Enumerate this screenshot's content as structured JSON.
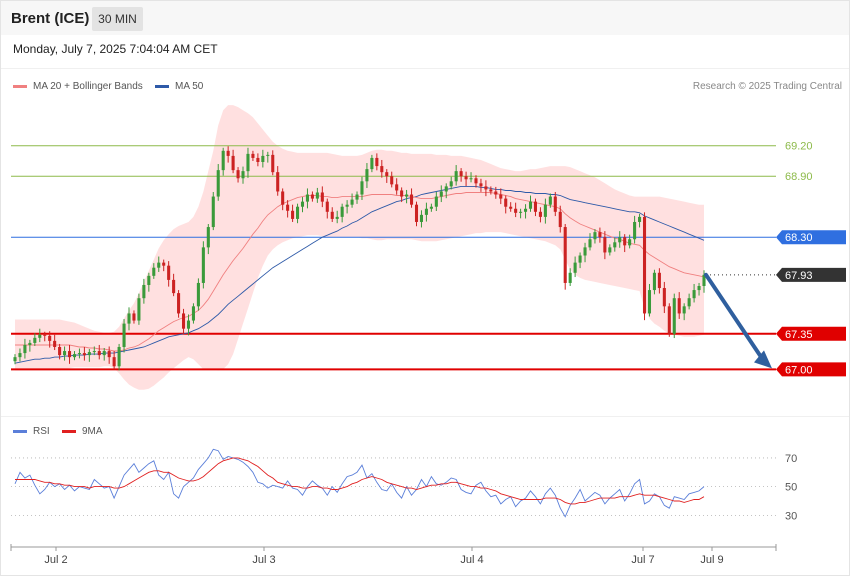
{
  "header": {
    "instrument": "Brent (ICE)",
    "timeframe": "30 MIN"
  },
  "datetime": "Monday, July 7, 2025 7:04:04 AM CET",
  "credit": "Research © 2025 Trading Central",
  "colors": {
    "ma20": "#f08080",
    "ma50": "#2e5aa8",
    "bb_fill": "#ffd6d6",
    "up": "#3a9a3a",
    "down": "#cc2222",
    "rsi": "#5b7fd9",
    "rsi_ma": "#e02020",
    "resistance": "#8dba4a",
    "pivot": "#2f6fe0",
    "support": "#e00000",
    "last": "#333333",
    "arrow": "#2f5f9e"
  },
  "chart_data": [
    {
      "type": "candlestick",
      "title": "Brent (ICE) 30 MIN",
      "legend": [
        "MA 20 + Bollinger Bands",
        "MA 50"
      ],
      "x_ticks": [
        "Jul 2",
        "Jul 3",
        "Jul 4",
        "Jul 7",
        "Jul 9"
      ],
      "ylim": [
        66.6,
        69.65
      ],
      "grid": false,
      "levels": [
        {
          "value": 69.2,
          "label": "69.20",
          "kind": "resistance"
        },
        {
          "value": 68.9,
          "label": "68.90",
          "kind": "resistance"
        },
        {
          "value": 68.3,
          "label": "68.30",
          "kind": "pivot"
        },
        {
          "value": 67.93,
          "label": "67.93",
          "kind": "last"
        },
        {
          "value": 67.35,
          "label": "67.35",
          "kind": "support"
        },
        {
          "value": 67.0,
          "label": "67.00",
          "kind": "support"
        }
      ],
      "close": [
        67.12,
        67.16,
        67.24,
        67.26,
        67.31,
        67.34,
        67.33,
        67.28,
        67.22,
        67.14,
        67.18,
        67.12,
        67.15,
        67.16,
        67.14,
        67.17,
        67.18,
        67.14,
        67.18,
        67.12,
        67.03,
        67.22,
        67.45,
        67.55,
        67.48,
        67.7,
        67.83,
        67.92,
        68.0,
        68.05,
        68.02,
        67.88,
        67.75,
        67.55,
        67.4,
        67.48,
        67.62,
        67.85,
        68.2,
        68.4,
        68.7,
        68.96,
        69.15,
        69.1,
        68.96,
        68.88,
        68.95,
        69.12,
        69.08,
        69.04,
        69.1,
        69.11,
        68.94,
        68.75,
        68.62,
        68.56,
        68.48,
        68.6,
        68.65,
        68.72,
        68.68,
        68.74,
        68.65,
        68.55,
        68.48,
        68.5,
        68.6,
        68.62,
        68.67,
        68.72,
        68.85,
        68.97,
        69.08,
        69.0,
        68.94,
        68.9,
        68.82,
        68.76,
        68.7,
        68.72,
        68.62,
        68.45,
        68.52,
        68.58,
        68.6,
        68.7,
        68.75,
        68.8,
        68.85,
        68.95,
        68.9,
        68.87,
        68.88,
        68.83,
        68.8,
        68.77,
        68.75,
        68.72,
        68.68,
        68.6,
        68.58,
        68.54,
        68.55,
        68.58,
        68.65,
        68.55,
        68.5,
        68.62,
        68.7,
        68.55,
        68.4,
        67.85,
        67.95,
        68.05,
        68.12,
        68.2,
        68.28,
        68.35,
        68.3,
        68.15,
        68.2,
        68.25,
        68.3,
        68.22,
        68.28,
        68.45,
        68.5,
        67.55,
        67.78,
        67.95,
        67.8,
        67.62,
        67.35,
        67.7,
        67.55,
        67.62,
        67.7,
        67.78,
        67.82,
        67.93
      ],
      "ma20": [
        67.24,
        67.24,
        67.24,
        67.24,
        67.24,
        67.24,
        67.24,
        67.24,
        67.24,
        67.24,
        67.24,
        67.24,
        67.23,
        67.22,
        67.22,
        67.21,
        67.21,
        67.2,
        67.2,
        67.19,
        67.18,
        67.18,
        67.19,
        67.21,
        67.22,
        67.24,
        67.27,
        67.3,
        67.34,
        67.38,
        67.41,
        67.44,
        67.47,
        67.49,
        67.51,
        67.52,
        67.55,
        67.58,
        67.63,
        67.69,
        67.77,
        67.85,
        67.93,
        68.0,
        68.07,
        68.13,
        68.19,
        68.26,
        68.33,
        68.39,
        68.46,
        68.52,
        68.56,
        68.6,
        68.63,
        68.65,
        68.67,
        68.69,
        68.7,
        68.71,
        68.71,
        68.71,
        68.7,
        68.7,
        68.69,
        68.69,
        68.7,
        68.7,
        68.7,
        68.7,
        68.7,
        68.71,
        68.72,
        68.72,
        68.72,
        68.72,
        68.72,
        68.71,
        68.71,
        68.71,
        68.7,
        68.69,
        68.68,
        68.68,
        68.68,
        68.69,
        68.7,
        68.71,
        68.72,
        68.73,
        68.73,
        68.74,
        68.74,
        68.74,
        68.74,
        68.74,
        68.74,
        68.73,
        68.72,
        68.71,
        68.7,
        68.68,
        68.67,
        68.66,
        68.65,
        68.64,
        68.63,
        68.62,
        68.61,
        68.6,
        68.58,
        68.53,
        68.49,
        68.46,
        68.43,
        68.41,
        68.39,
        68.37,
        68.35,
        68.33,
        68.31,
        68.29,
        68.28,
        68.26,
        68.24,
        68.23,
        68.22,
        68.17,
        68.13,
        68.1,
        68.07,
        68.04,
        68.01,
        67.99,
        67.97,
        67.95,
        67.94,
        67.93,
        67.92,
        67.91
      ],
      "ma50": [
        67.06,
        67.07,
        67.08,
        67.09,
        67.1,
        67.1,
        67.11,
        67.11,
        67.12,
        67.12,
        67.13,
        67.13,
        67.14,
        67.14,
        67.14,
        67.15,
        67.15,
        67.15,
        67.16,
        67.16,
        67.16,
        67.17,
        67.18,
        67.19,
        67.2,
        67.21,
        67.22,
        67.24,
        67.26,
        67.28,
        67.3,
        67.32,
        67.33,
        67.34,
        67.35,
        67.36,
        67.38,
        67.4,
        67.43,
        67.46,
        67.5,
        67.54,
        67.59,
        67.64,
        67.68,
        67.72,
        67.76,
        67.8,
        67.84,
        67.88,
        67.92,
        67.96,
        68.0,
        68.03,
        68.06,
        68.09,
        68.12,
        68.15,
        68.18,
        68.21,
        68.24,
        68.27,
        68.3,
        68.32,
        68.34,
        68.36,
        68.39,
        68.41,
        68.44,
        68.46,
        68.49,
        68.52,
        68.55,
        68.57,
        68.59,
        68.61,
        68.63,
        68.65,
        68.66,
        68.68,
        68.69,
        68.7,
        68.72,
        68.73,
        68.74,
        68.75,
        68.76,
        68.77,
        68.78,
        68.79,
        68.8,
        68.8,
        68.8,
        68.8,
        68.79,
        68.79,
        68.78,
        68.77,
        68.77,
        68.76,
        68.76,
        68.75,
        68.75,
        68.74,
        68.74,
        68.73,
        68.73,
        68.73,
        68.72,
        68.72,
        68.71,
        68.69,
        68.67,
        68.66,
        68.65,
        68.64,
        68.63,
        68.62,
        68.61,
        68.6,
        68.59,
        68.58,
        68.57,
        68.56,
        68.55,
        68.55,
        68.54,
        68.51,
        68.49,
        68.47,
        68.45,
        68.43,
        68.41,
        68.39,
        68.37,
        68.35,
        68.33,
        68.31,
        68.29,
        68.27
      ],
      "bb_upper": [
        67.49,
        67.49,
        67.49,
        67.49,
        67.49,
        67.49,
        67.49,
        67.49,
        67.49,
        67.49,
        67.48,
        67.47,
        67.46,
        67.44,
        67.42,
        67.4,
        67.38,
        67.37,
        67.36,
        67.36,
        67.37,
        67.42,
        67.5,
        67.58,
        67.65,
        67.75,
        67.86,
        67.97,
        68.08,
        68.19,
        68.27,
        68.33,
        68.38,
        68.41,
        68.43,
        68.45,
        68.5,
        68.6,
        68.75,
        68.95,
        69.15,
        69.4,
        69.55,
        69.6,
        69.6,
        69.58,
        69.55,
        69.52,
        69.48,
        69.42,
        69.36,
        69.3,
        69.24,
        69.2,
        69.17,
        69.15,
        69.14,
        69.13,
        69.13,
        69.13,
        69.13,
        69.13,
        69.13,
        69.13,
        69.12,
        69.11,
        69.1,
        69.1,
        69.1,
        69.1,
        69.11,
        69.13,
        69.15,
        69.16,
        69.16,
        69.15,
        69.15,
        69.14,
        69.13,
        69.13,
        69.12,
        69.12,
        69.12,
        69.12,
        69.12,
        69.11,
        69.11,
        69.11,
        69.1,
        69.1,
        69.1,
        69.09,
        69.08,
        69.07,
        69.06,
        69.04,
        69.02,
        69.0,
        68.98,
        68.97,
        68.96,
        68.95,
        68.95,
        68.96,
        68.97,
        68.97,
        68.98,
        68.99,
        69.0,
        69.0,
        69.0,
        69.0,
        68.99,
        68.97,
        68.95,
        68.93,
        68.91,
        68.89,
        68.86,
        68.83,
        68.8,
        68.77,
        68.75,
        68.73,
        68.71,
        68.7,
        68.7,
        68.7,
        68.7,
        68.7,
        68.7,
        68.69,
        68.68,
        68.67,
        68.66,
        68.65,
        68.64,
        68.63,
        68.62,
        68.62
      ],
      "bb_lower": [
        66.99,
        66.99,
        66.99,
        66.99,
        66.99,
        66.99,
        66.99,
        66.99,
        66.99,
        66.99,
        67.0,
        67.01,
        67.02,
        67.02,
        67.02,
        67.02,
        67.02,
        67.02,
        67.03,
        67.03,
        67.01,
        66.96,
        66.9,
        66.85,
        66.82,
        66.8,
        66.8,
        66.81,
        66.84,
        66.88,
        66.92,
        66.97,
        67.01,
        67.05,
        67.09,
        67.12,
        67.1,
        67.05,
        67.0,
        67.0,
        67.0,
        66.99,
        67.0,
        67.05,
        67.15,
        67.3,
        67.45,
        67.6,
        67.75,
        67.9,
        68.02,
        68.12,
        68.18,
        68.22,
        68.25,
        68.27,
        68.29,
        68.3,
        68.31,
        68.32,
        68.32,
        68.32,
        68.31,
        68.3,
        68.3,
        68.3,
        68.3,
        68.3,
        68.3,
        68.3,
        68.29,
        68.29,
        68.28,
        68.27,
        68.27,
        68.28,
        68.28,
        68.28,
        68.28,
        68.28,
        68.28,
        68.27,
        68.26,
        68.26,
        68.26,
        68.26,
        68.27,
        68.28,
        68.29,
        68.3,
        68.31,
        68.32,
        68.33,
        68.34,
        68.34,
        68.35,
        68.35,
        68.35,
        68.35,
        68.34,
        68.33,
        68.32,
        68.31,
        68.3,
        68.29,
        68.28,
        68.27,
        68.26,
        68.24,
        68.22,
        68.18,
        68.08,
        67.98,
        67.93,
        67.9,
        67.88,
        67.87,
        67.86,
        67.85,
        67.84,
        67.83,
        67.82,
        67.81,
        67.8,
        67.79,
        67.78,
        67.77,
        67.6,
        67.5,
        67.45,
        67.42,
        67.38,
        67.35,
        67.34,
        67.33,
        67.32,
        67.32,
        67.32,
        67.33,
        67.34
      ]
    },
    {
      "type": "line",
      "legend": [
        "RSI",
        "9MA"
      ],
      "y_ticks": [
        70,
        50,
        30
      ],
      "ylim": [
        17,
        79
      ],
      "rsi": [
        52,
        60,
        56,
        58,
        51,
        45,
        48,
        53,
        50,
        52,
        48,
        51,
        47,
        50,
        49,
        48,
        55,
        52,
        49,
        50,
        42,
        50,
        58,
        62,
        66,
        60,
        63,
        66,
        68,
        58,
        55,
        60,
        45,
        42,
        50,
        53,
        56,
        62,
        66,
        70,
        76,
        75,
        69,
        71,
        70,
        69,
        67,
        64,
        60,
        53,
        52,
        49,
        51,
        50,
        49,
        54,
        49,
        48,
        44,
        50,
        54,
        51,
        49,
        44,
        50,
        46,
        52,
        57,
        58,
        60,
        65,
        56,
        59,
        53,
        48,
        47,
        52,
        46,
        42,
        50,
        44,
        48,
        55,
        50,
        57,
        52,
        51,
        53,
        56,
        55,
        48,
        46,
        45,
        51,
        53,
        47,
        43,
        44,
        38,
        41,
        43,
        36,
        40,
        42,
        47,
        43,
        38,
        45,
        49,
        44,
        35,
        29,
        37,
        42,
        48,
        40,
        43,
        46,
        44,
        38,
        42,
        45,
        48,
        40,
        45,
        52,
        55,
        38,
        40,
        45,
        43,
        37,
        35,
        43,
        42,
        41,
        45,
        46,
        47,
        50
      ],
      "rsi_ma": [
        55,
        55,
        55,
        55,
        55,
        54,
        53,
        53,
        52,
        52,
        51,
        51,
        50,
        50,
        50,
        49,
        50,
        50,
        50,
        50,
        49,
        49,
        50,
        52,
        54,
        56,
        58,
        60,
        61,
        61,
        60,
        60,
        58,
        56,
        55,
        54,
        54,
        55,
        57,
        60,
        63,
        66,
        68,
        69,
        70,
        70,
        69,
        68,
        66,
        64,
        61,
        58,
        56,
        53,
        52,
        51,
        50,
        50,
        49,
        49,
        50,
        50,
        49,
        49,
        48,
        48,
        49,
        50,
        52,
        53,
        55,
        56,
        57,
        56,
        55,
        53,
        52,
        51,
        50,
        49,
        49,
        48,
        49,
        50,
        51,
        51,
        52,
        52,
        53,
        53,
        52,
        51,
        50,
        50,
        49,
        49,
        48,
        47,
        45,
        44,
        43,
        42,
        41,
        41,
        41,
        41,
        41,
        42,
        42,
        42,
        41,
        39,
        38,
        38,
        39,
        39,
        40,
        41,
        42,
        42,
        42,
        42,
        43,
        43,
        43,
        44,
        45,
        44,
        44,
        44,
        43,
        42,
        41,
        40,
        40,
        39,
        40,
        41,
        41,
        43
      ]
    }
  ]
}
